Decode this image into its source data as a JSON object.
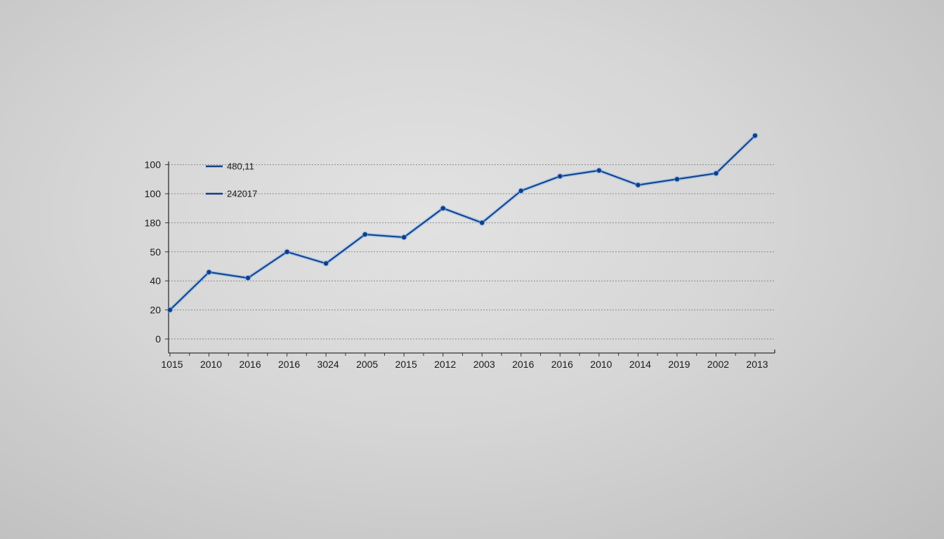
{
  "chart_data": {
    "type": "line",
    "title": "",
    "xlabel": "",
    "ylabel": "",
    "grid": true,
    "legend_position": "top-left inside",
    "legend": [
      {
        "label": "480,11",
        "color": "#0d3f8a"
      },
      {
        "label": "242017",
        "color": "#0d3f8a"
      }
    ],
    "y_tick_labels": [
      "0",
      "20",
      "40",
      "50",
      "180",
      "100",
      "100"
    ],
    "categories": [
      "1015",
      "2010",
      "2016",
      "2016",
      "3024",
      "2005",
      "2015",
      "2012",
      "2003",
      "2016",
      "2016",
      "2010",
      "2014",
      "2019",
      "2002",
      "2013"
    ],
    "series": [
      {
        "name": "480,11",
        "color": "#0d3f8a",
        "values": [
          10,
          23,
          21,
          30,
          26,
          36,
          35,
          45,
          40,
          51,
          56,
          58,
          53,
          55,
          57,
          70
        ]
      }
    ],
    "note_values_units": "values approximated on a linear pixel scale where 0 = first gridline and each gridline step = 10 units"
  },
  "colors": {
    "line": "#0d3f8a",
    "marker": "#0d3f8a",
    "glow": "#7fb0ea",
    "grid": "#8a8a8a",
    "axis": "#333333"
  }
}
